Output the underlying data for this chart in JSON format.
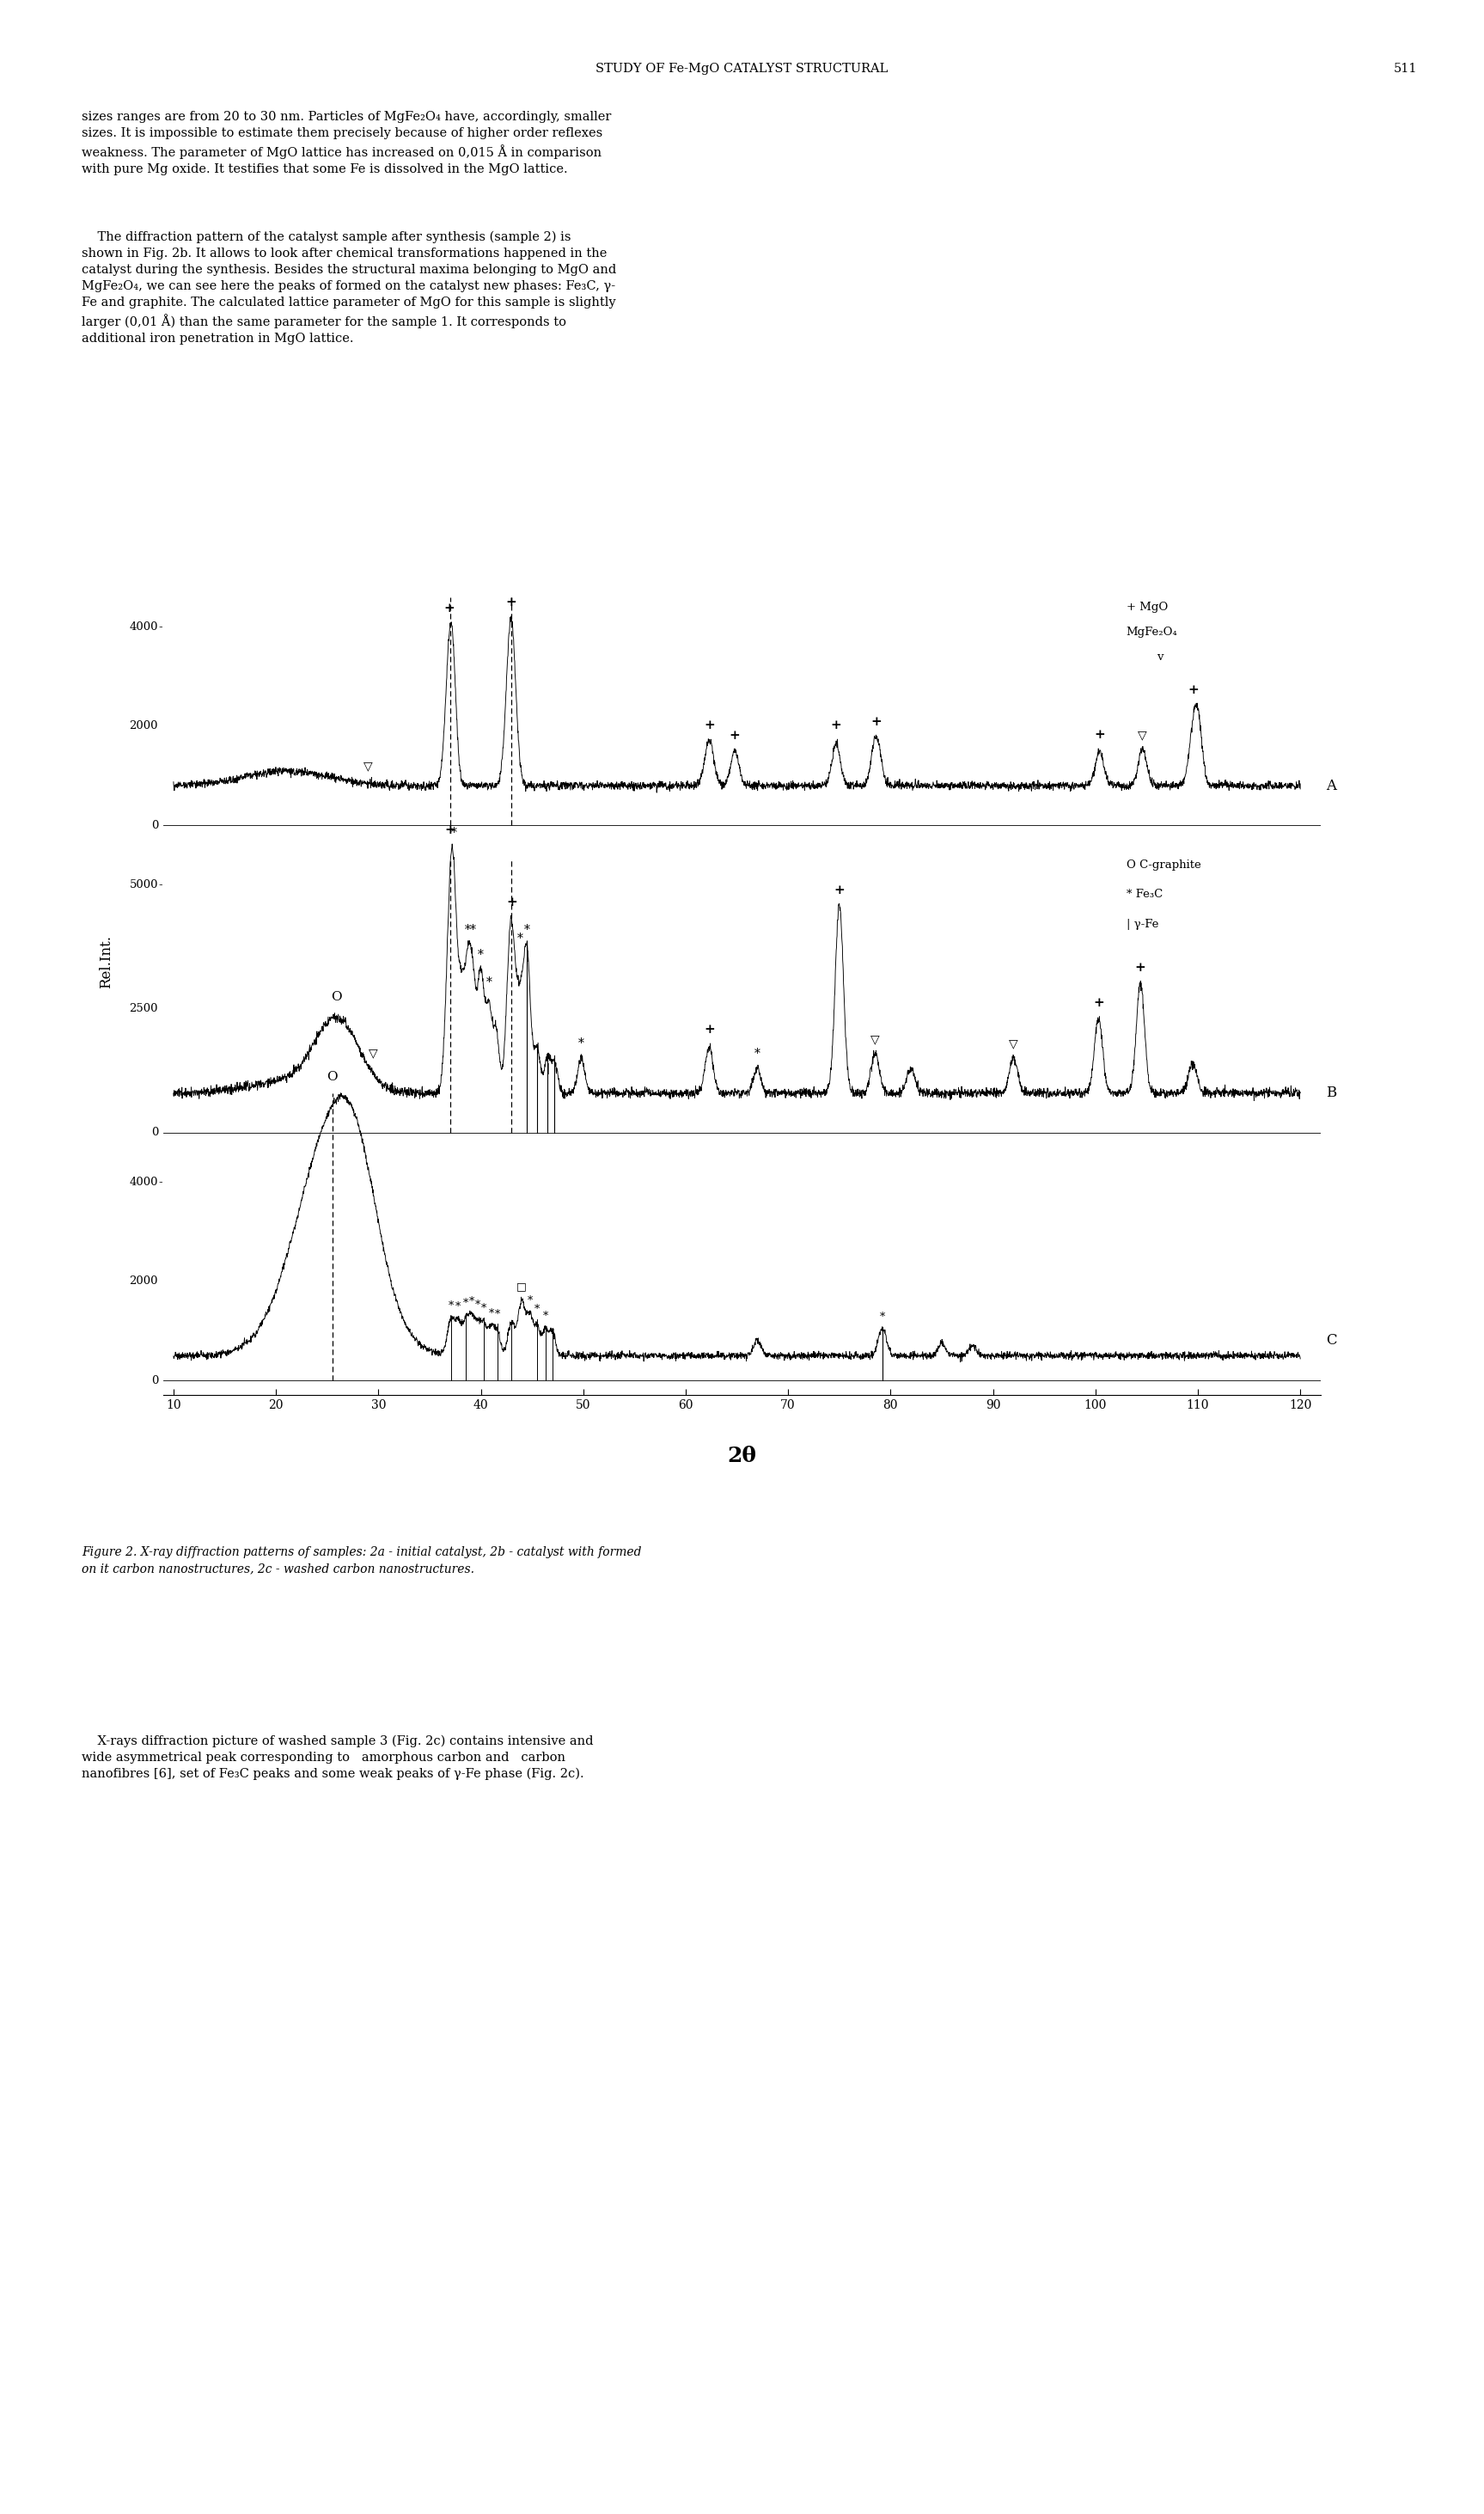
{
  "page_title": "STUDY OF Fe-MgO CATALYST STRUCTURAL",
  "page_number": "511",
  "para1_line1": "sizes ranges are from 20 to 30 nm. Particles of MgFe₂O₄ have, accordingly, smaller",
  "para1_line2": "sizes. It is impossible to estimate them precisely because of higher order reflexes",
  "para1_line3": "weakness. The parameter of MgO lattice has increased on 0,015 Å in comparison",
  "para1_line4": "with pure Mg oxide. It testifies that some Fe is dissolved in the MgO lattice.",
  "para2_line1": "    The diffraction pattern of the catalyst sample after synthesis (sample 2) is",
  "para2_line2": "shown in Fig. 2b. It allows to look after chemical transformations happened in the",
  "para2_line3": "catalyst during the synthesis. Besides the structural maxima belonging to MgO and",
  "para2_line4": "MgFe₂O₄, we can see here the peaks of formed on the catalyst new phases: Fe₃C, γ-",
  "para2_line5": "Fe and graphite. The calculated lattice parameter of MgO for this sample is slightly",
  "para2_line6": "larger (0,01 Å) than the same parameter for the sample 1. It corresponds to",
  "para2_line7": "additional iron penetration in MgO lattice.",
  "caption_line1": "Figure 2. X-ray diffraction patterns of samples: 2a - initial catalyst, 2b - catalyst with formed",
  "caption_line2": "on it carbon nanostructures, 2c - washed carbon nanostructures.",
  "para3_line1": "    X-rays diffraction picture of washed sample 3 (Fig. 2c) contains intensive and",
  "para3_line2": "wide asymmetrical peak corresponding to   amorphous carbon and   carbon",
  "para3_line3": "nanofibres [6], set of Fe₃C peaks and some weak peaks of γ-Fe phase (Fig. 2c).",
  "xlabel": "2θ",
  "ylabel": "Rel.Int.",
  "background_color": "#ffffff"
}
